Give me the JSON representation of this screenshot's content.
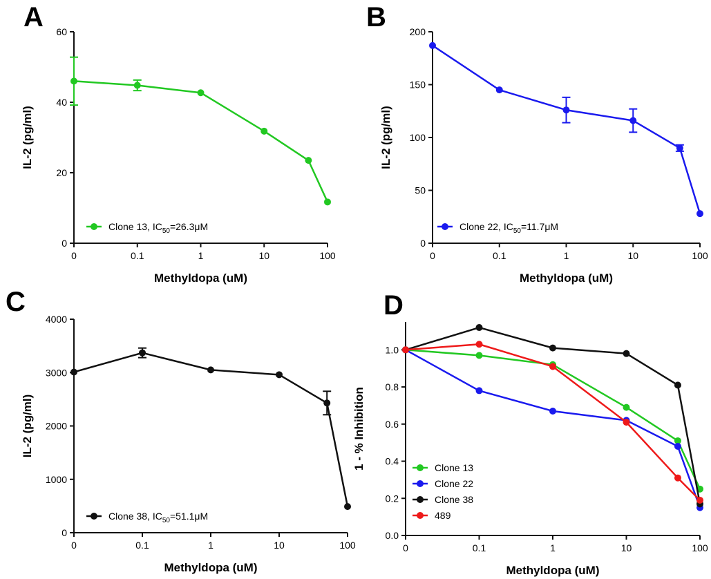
{
  "colors": {
    "green": "#22c822",
    "blue": "#1a1aee",
    "black": "#111111",
    "red": "#ee1a1a",
    "axis": "#111111"
  },
  "chart_data": [
    {
      "panel": "A",
      "type": "line",
      "xlabel": "Methyldopa (uM)",
      "ylabel": "IL-2 (pg/ml)",
      "x_tick_labels": [
        "0",
        "0.1",
        "1",
        "10",
        "100"
      ],
      "x_values": [
        0,
        0.1,
        1,
        10,
        50,
        100
      ],
      "ylim": [
        0,
        60
      ],
      "y_ticks": [
        0,
        20,
        40,
        60
      ],
      "legend_position": "bottom-left",
      "series": [
        {
          "name": "Clone 13, IC50=26.3μM",
          "legend_prefix": "Clone 13, IC",
          "legend_sub": "50",
          "legend_suffix": "=26.3μM",
          "color_key": "green",
          "values": [
            46,
            44.8,
            42.7,
            31.8,
            23.5,
            11.7
          ],
          "errors": [
            6.8,
            1.5,
            0,
            0,
            0,
            0
          ]
        }
      ]
    },
    {
      "panel": "B",
      "type": "line",
      "xlabel": "Methyldopa (uM)",
      "ylabel": "IL-2 (pg/ml)",
      "x_tick_labels": [
        "0",
        "0.1",
        "1",
        "10",
        "100"
      ],
      "x_values": [
        0,
        0.1,
        1,
        10,
        50,
        100
      ],
      "ylim": [
        0,
        200
      ],
      "y_ticks": [
        0,
        50,
        100,
        150,
        200
      ],
      "legend_position": "bottom-left",
      "series": [
        {
          "name": "Clone 22, IC50=11.7μM",
          "legend_prefix": "Clone 22, IC",
          "legend_sub": "50",
          "legend_suffix": "=11.7μM",
          "color_key": "blue",
          "values": [
            187,
            145,
            126,
            116,
            90,
            28
          ],
          "errors": [
            0,
            0,
            12,
            11,
            3,
            0
          ]
        }
      ]
    },
    {
      "panel": "C",
      "type": "line",
      "xlabel": "Methyldopa (uM)",
      "ylabel": "IL-2 (pg/ml)",
      "x_tick_labels": [
        "0",
        "0.1",
        "1",
        "10",
        "100"
      ],
      "x_values": [
        0,
        0.1,
        1,
        10,
        50,
        100
      ],
      "ylim": [
        0,
        4000
      ],
      "y_ticks": [
        0,
        1000,
        2000,
        3000,
        4000
      ],
      "legend_position": "bottom-left",
      "series": [
        {
          "name": "Clone 38, IC50=51.1μM",
          "legend_prefix": "Clone 38, IC",
          "legend_sub": "50",
          "legend_suffix": "=51.1μM",
          "color_key": "black",
          "values": [
            3010,
            3370,
            3050,
            2960,
            2430,
            490
          ],
          "errors": [
            0,
            90,
            0,
            0,
            220,
            0
          ]
        }
      ]
    },
    {
      "panel": "D",
      "type": "line",
      "xlabel": "Methyldopa (uM)",
      "ylabel": "1 - % Inhibition",
      "x_tick_labels": [
        "0",
        "0.1",
        "1",
        "10",
        "100"
      ],
      "x_values": [
        0,
        0.1,
        1,
        10,
        50,
        100
      ],
      "ylim": [
        0,
        1.15
      ],
      "y_ticks": [
        0.0,
        0.2,
        0.4,
        0.6,
        0.8,
        1.0
      ],
      "y_tick_labels": [
        "0.0",
        "0.2",
        "0.4",
        "0.6",
        "0.8",
        "1.0"
      ],
      "legend_position": "bottom-left",
      "series": [
        {
          "name": "Clone 13",
          "color_key": "green",
          "values": [
            1.0,
            0.97,
            0.92,
            0.69,
            0.51,
            0.25
          ]
        },
        {
          "name": "Clone 22",
          "color_key": "blue",
          "values": [
            1.0,
            0.78,
            0.67,
            0.62,
            0.48,
            0.15
          ]
        },
        {
          "name": "Clone 38",
          "color_key": "black",
          "values": [
            1.0,
            1.12,
            1.01,
            0.98,
            0.81,
            0.17
          ]
        },
        {
          "name": "489",
          "color_key": "red",
          "values": [
            1.0,
            1.03,
            0.91,
            0.61,
            0.31,
            0.19
          ]
        }
      ]
    }
  ]
}
